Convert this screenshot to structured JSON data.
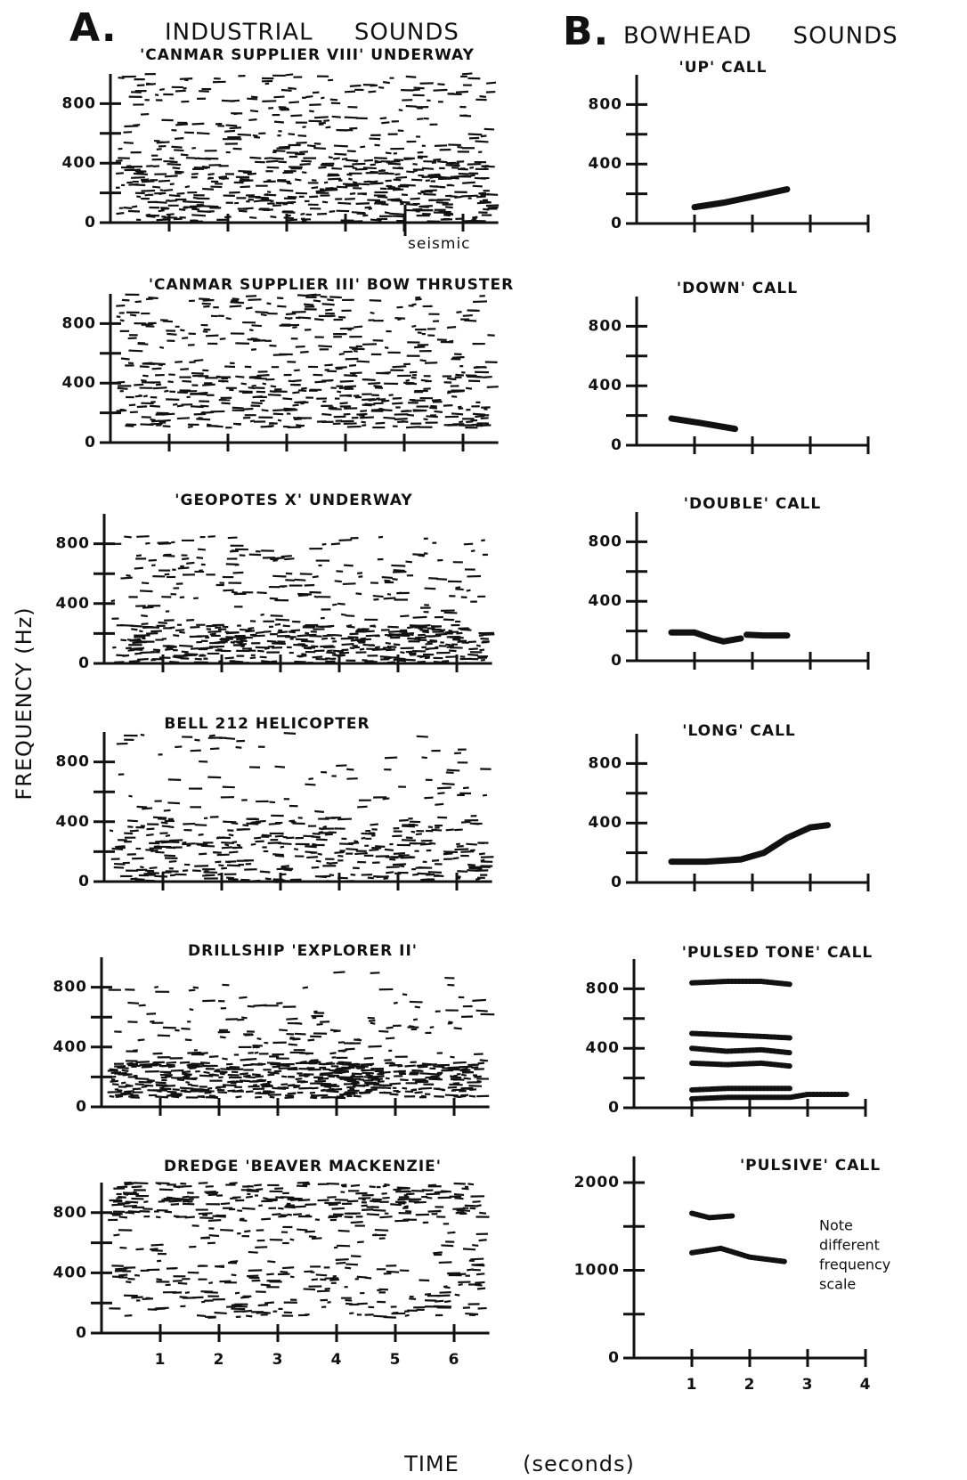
{
  "figure": {
    "panel_a_label": "A.",
    "panel_a_title": "INDUSTRIAL     SOUNDS",
    "panel_b_label": "B.",
    "panel_b_title": "BOWHEAD     SOUNDS",
    "ylabel": "FREQUENCY (Hz)",
    "xlabel": "TIME",
    "xunit": "(seconds)"
  },
  "chart_data": [
    {
      "type": "spectrogram",
      "title": "'CANMAR SUPPLIER VIII' UNDERWAY",
      "annotation": "seismic",
      "xlim": [
        0,
        6.6
      ],
      "xtickmarks": [
        1,
        2,
        3,
        4,
        5,
        6
      ],
      "ylim": [
        0,
        1000
      ],
      "yticks": [
        0,
        400,
        800
      ],
      "ytickmarks": [
        200,
        600
      ]
    },
    {
      "type": "spectrogram",
      "title": "'CANMAR SUPPLIER III' BOW THRUSTER",
      "xlim": [
        0,
        6.6
      ],
      "xtickmarks": [
        1,
        2,
        3,
        4,
        5,
        6
      ],
      "ylim": [
        0,
        1000
      ],
      "yticks": [
        0,
        400,
        800
      ],
      "ytickmarks": [
        200,
        600
      ]
    },
    {
      "type": "spectrogram",
      "title": "'GEOPOTES X' UNDERWAY",
      "xlim": [
        0,
        6.6
      ],
      "xtickmarks": [
        1,
        2,
        3,
        4,
        5,
        6
      ],
      "ylim": [
        0,
        1000
      ],
      "yticks": [
        0,
        400,
        800
      ],
      "ytickmarks": [
        200,
        600
      ]
    },
    {
      "type": "spectrogram",
      "title": "BELL 212 HELICOPTER",
      "xlim": [
        0,
        6.6
      ],
      "xtickmarks": [
        1,
        2,
        3,
        4,
        5,
        6
      ],
      "ylim": [
        0,
        1000
      ],
      "yticks": [
        0,
        400,
        800
      ],
      "ytickmarks": [
        200,
        600
      ]
    },
    {
      "type": "spectrogram",
      "title": "DRILLSHIP 'EXPLORER II'",
      "xlim": [
        0,
        6.6
      ],
      "xtickmarks": [
        1,
        2,
        3,
        4,
        5,
        6
      ],
      "ylim": [
        0,
        1000
      ],
      "yticks": [
        0,
        400,
        800
      ],
      "ytickmarks": [
        200,
        600
      ]
    },
    {
      "type": "spectrogram",
      "title": "DREDGE 'BEAVER MACKENZIE'",
      "xlim": [
        0,
        6.6
      ],
      "xticks": [
        1,
        2,
        3,
        4,
        5,
        6
      ],
      "ylim": [
        0,
        1000
      ],
      "yticks": [
        0,
        400,
        800
      ],
      "ytickmarks": [
        200,
        600
      ]
    },
    {
      "type": "contour",
      "title": "'UP' CALL",
      "xlim": [
        0,
        4
      ],
      "xtickmarks": [
        1,
        2,
        3,
        4
      ],
      "ylim": [
        0,
        1000
      ],
      "yticks": [
        0,
        400,
        800
      ],
      "ytickmarks": [
        200,
        600
      ],
      "series": [
        {
          "x": [
            1.0,
            1.5,
            2.0,
            2.6
          ],
          "values": [
            110,
            140,
            180,
            230
          ]
        }
      ]
    },
    {
      "type": "contour",
      "title": "'DOWN' CALL",
      "xlim": [
        0,
        4
      ],
      "xtickmarks": [
        1,
        2,
        3,
        4
      ],
      "ylim": [
        0,
        1000
      ],
      "yticks": [
        0,
        400,
        800
      ],
      "ytickmarks": [
        200,
        600
      ],
      "series": [
        {
          "x": [
            0.6,
            1.1,
            1.7
          ],
          "values": [
            180,
            150,
            110
          ]
        }
      ]
    },
    {
      "type": "contour",
      "title": "'DOUBLE' CALL",
      "xlim": [
        0,
        4
      ],
      "xtickmarks": [
        1,
        2,
        3,
        4
      ],
      "ylim": [
        0,
        1000
      ],
      "yticks": [
        0,
        400,
        800
      ],
      "ytickmarks": [
        200,
        600
      ],
      "series": [
        {
          "x": [
            0.6,
            1.0,
            1.3,
            1.5,
            1.8
          ],
          "values": [
            190,
            190,
            150,
            130,
            150
          ]
        },
        {
          "x": [
            1.9,
            2.2,
            2.6
          ],
          "values": [
            175,
            170,
            170
          ]
        }
      ]
    },
    {
      "type": "contour",
      "title": "'LONG' CALL",
      "xlim": [
        0,
        4
      ],
      "xtickmarks": [
        1,
        2,
        3,
        4
      ],
      "ylim": [
        0,
        1000
      ],
      "yticks": [
        0,
        400,
        800
      ],
      "ytickmarks": [
        200,
        600
      ],
      "series": [
        {
          "x": [
            0.6,
            1.2,
            1.8,
            2.2,
            2.6,
            3.0,
            3.3
          ],
          "values": [
            140,
            140,
            155,
            200,
            300,
            370,
            385
          ]
        }
      ]
    },
    {
      "type": "contour",
      "title": "'PULSED TONE' CALL",
      "xlim": [
        0,
        4
      ],
      "xtickmarks": [
        1,
        2,
        3,
        4
      ],
      "ylim": [
        0,
        1000
      ],
      "yticks": [
        0,
        400,
        800
      ],
      "ytickmarks": [
        200,
        600
      ],
      "series": [
        {
          "x": [
            1.0,
            1.6,
            2.2,
            2.7
          ],
          "values": [
            840,
            850,
            850,
            830
          ]
        },
        {
          "x": [
            1.0,
            1.6,
            2.2,
            2.7
          ],
          "values": [
            500,
            490,
            480,
            470
          ]
        },
        {
          "x": [
            1.0,
            1.6,
            2.2,
            2.7
          ],
          "values": [
            400,
            380,
            390,
            370
          ]
        },
        {
          "x": [
            1.0,
            1.6,
            2.2,
            2.7
          ],
          "values": [
            300,
            290,
            300,
            280
          ]
        },
        {
          "x": [
            1.0,
            1.6,
            2.2,
            2.7
          ],
          "values": [
            120,
            130,
            130,
            130
          ]
        },
        {
          "x": [
            1.0,
            1.6,
            2.2,
            2.7,
            3.0,
            3.7
          ],
          "values": [
            60,
            70,
            70,
            70,
            90,
            90
          ]
        }
      ]
    },
    {
      "type": "contour",
      "title": "'PULSIVE' CALL",
      "annotation_lines": [
        "Note",
        "different",
        "frequency",
        "scale"
      ],
      "xlim": [
        0,
        4
      ],
      "xticks": [
        1,
        2,
        3,
        4
      ],
      "ylim": [
        0,
        2300
      ],
      "yticks": [
        0,
        1000,
        2000
      ],
      "ytickmarks": [
        500,
        1500
      ],
      "series": [
        {
          "x": [
            1.0,
            1.3,
            1.7
          ],
          "values": [
            1650,
            1600,
            1620
          ]
        },
        {
          "x": [
            1.0,
            1.5,
            2.0,
            2.6
          ],
          "values": [
            1200,
            1250,
            1150,
            1100
          ]
        }
      ]
    }
  ]
}
